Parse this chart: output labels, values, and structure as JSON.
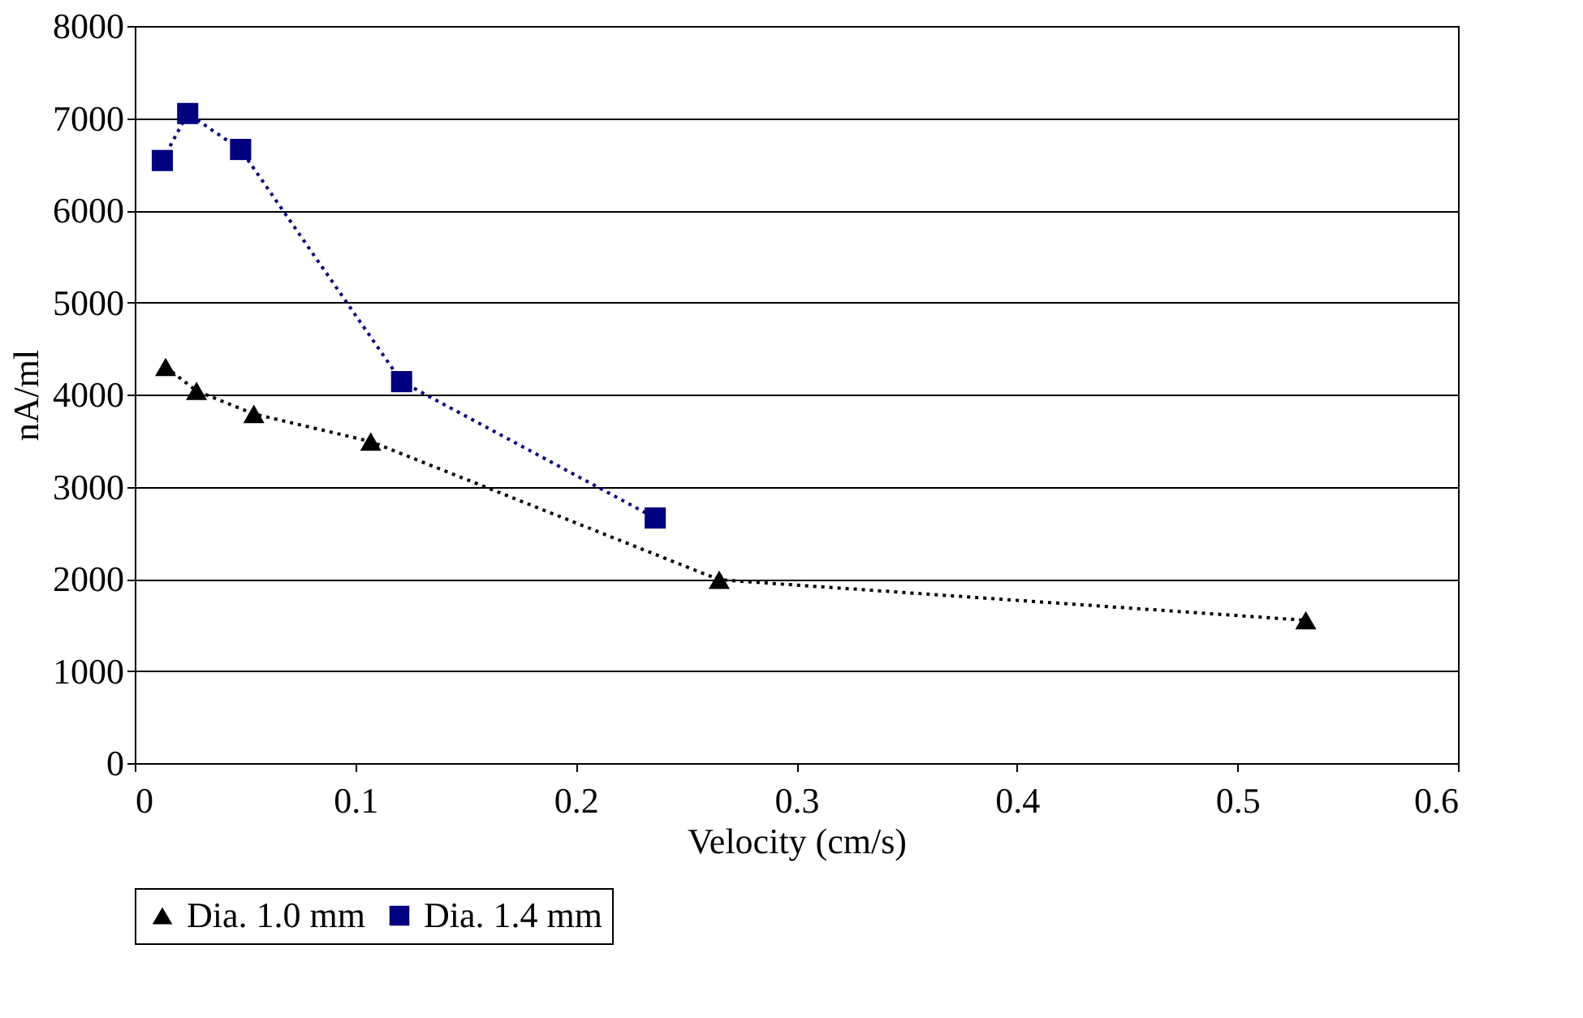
{
  "chart_data": {
    "type": "line",
    "xlabel": "Velocity (cm/s)",
    "ylabel": "nA/ml",
    "xlim": [
      0,
      0.6
    ],
    "xticks": [
      0,
      0.1,
      0.2,
      0.3,
      0.4,
      0.5,
      0.6
    ],
    "ylim": [
      0,
      8000
    ],
    "yticks": [
      0,
      1000,
      2000,
      3000,
      4000,
      5000,
      6000,
      7000,
      8000
    ],
    "grid": "y",
    "legend": "bottom",
    "line_style": "dotted",
    "series": [
      {
        "name": "Dia. 1.0 mm",
        "color": "#000000",
        "marker": "triangle",
        "x": [
          0.014,
          0.028,
          0.054,
          0.107,
          0.265,
          0.531
        ],
        "values": [
          4300,
          4040,
          3790,
          3490,
          1990,
          1550
        ]
      },
      {
        "name": "Dia. 1.4 mm",
        "color": "#000080",
        "marker": "square",
        "x": [
          0.0125,
          0.024,
          0.048,
          0.121,
          0.236
        ],
        "values": [
          6540,
          7050,
          6660,
          4140,
          2660
        ]
      }
    ]
  }
}
